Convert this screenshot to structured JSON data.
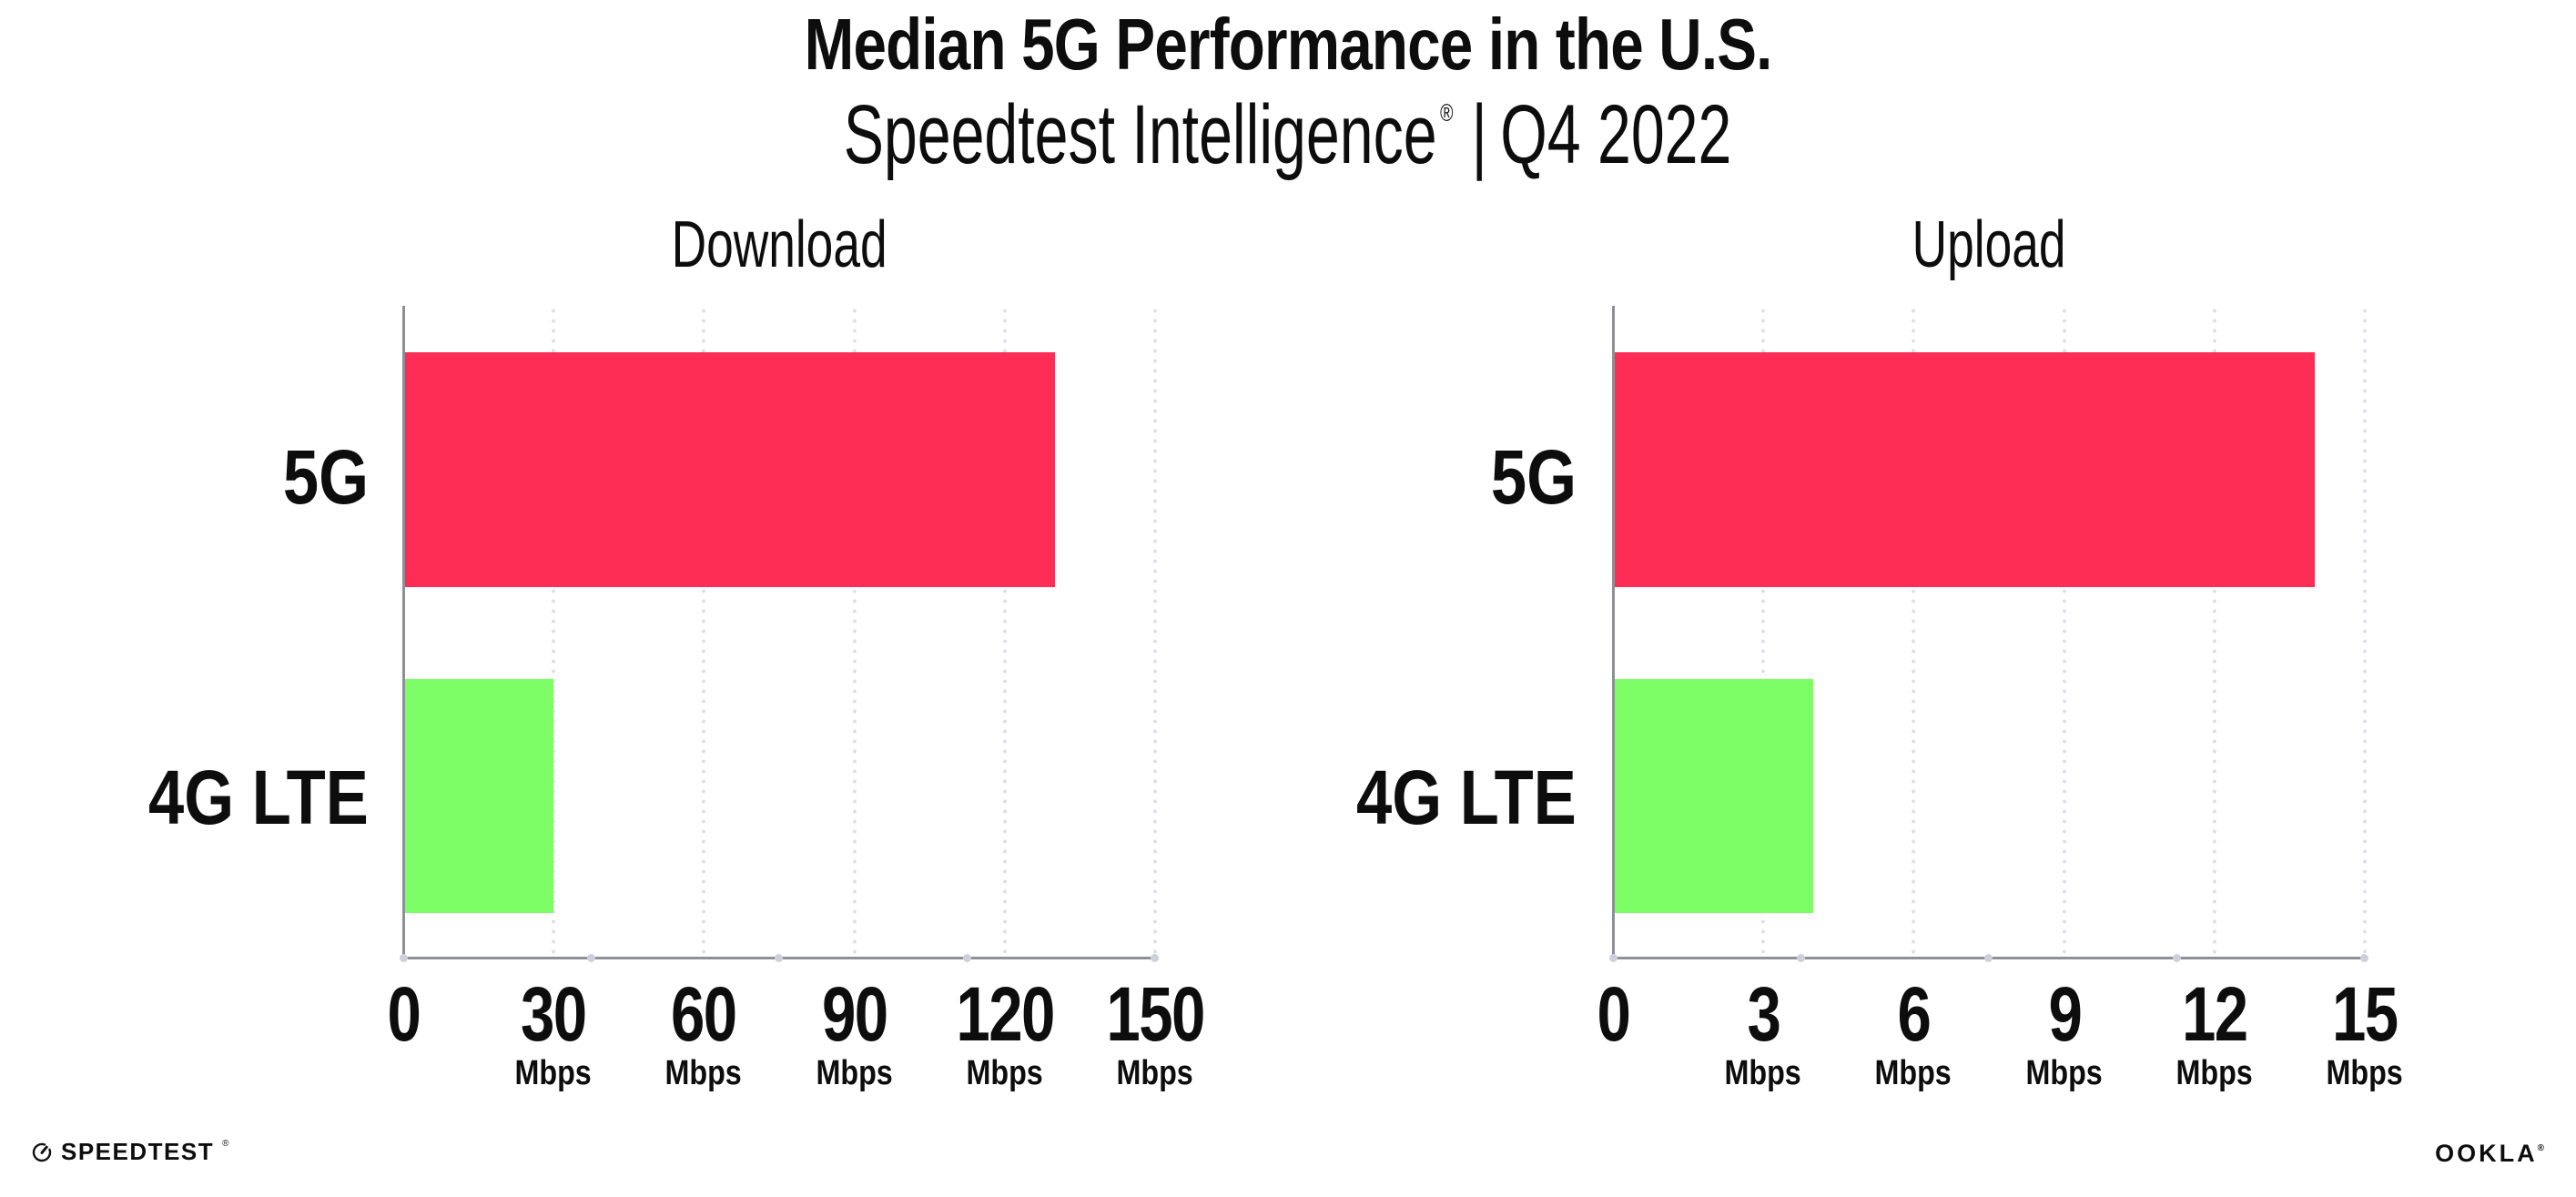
{
  "header": {
    "title": "Median 5G Performance in the U.S.",
    "subtitle_product": "Speedtest Intelligence",
    "subtitle_reg": "®",
    "subtitle_divider": "|",
    "subtitle_period": "Q4 2022"
  },
  "chart_data": [
    {
      "type": "bar",
      "orientation": "horizontal",
      "title": "Download",
      "categories": [
        "5G",
        "4G LTE"
      ],
      "values": [
        130,
        30
      ],
      "unit": "Mbps",
      "xlim": [
        0,
        150
      ],
      "xticks": [
        0,
        30,
        60,
        90,
        120,
        150
      ],
      "xtick_labels": [
        "0",
        "30",
        "60",
        "90",
        "120",
        "150"
      ],
      "bar_colors": [
        "#FD2D55",
        "#7DFE66"
      ],
      "grid": "dotted vertical gridlines at tick positions",
      "legend": "none"
    },
    {
      "type": "bar",
      "orientation": "horizontal",
      "title": "Upload",
      "categories": [
        "5G",
        "4G LTE"
      ],
      "values": [
        14,
        4
      ],
      "unit": "Mbps",
      "xlim": [
        0,
        15
      ],
      "xticks": [
        0,
        3,
        6,
        9,
        12,
        15
      ],
      "xtick_labels": [
        "0",
        "3",
        "6",
        "9",
        "12",
        "15"
      ],
      "bar_colors": [
        "#FD2D55",
        "#7DFE66"
      ],
      "grid": "dotted vertical gridlines at tick positions",
      "legend": "none"
    }
  ],
  "footer": {
    "speedtest": "SPEEDTEST",
    "speedtest_reg": "®",
    "ookla": "OOKLA",
    "ookla_reg": "®"
  },
  "colors": {
    "bar_5g": "#FD2D55",
    "bar_4g": "#7DFE66",
    "axis": "#8E9096",
    "grid_dot": "#DCDEE8",
    "tick_dot": "#CDD0DC",
    "text": "#0D0D0D",
    "background": "#FFFFFF"
  }
}
